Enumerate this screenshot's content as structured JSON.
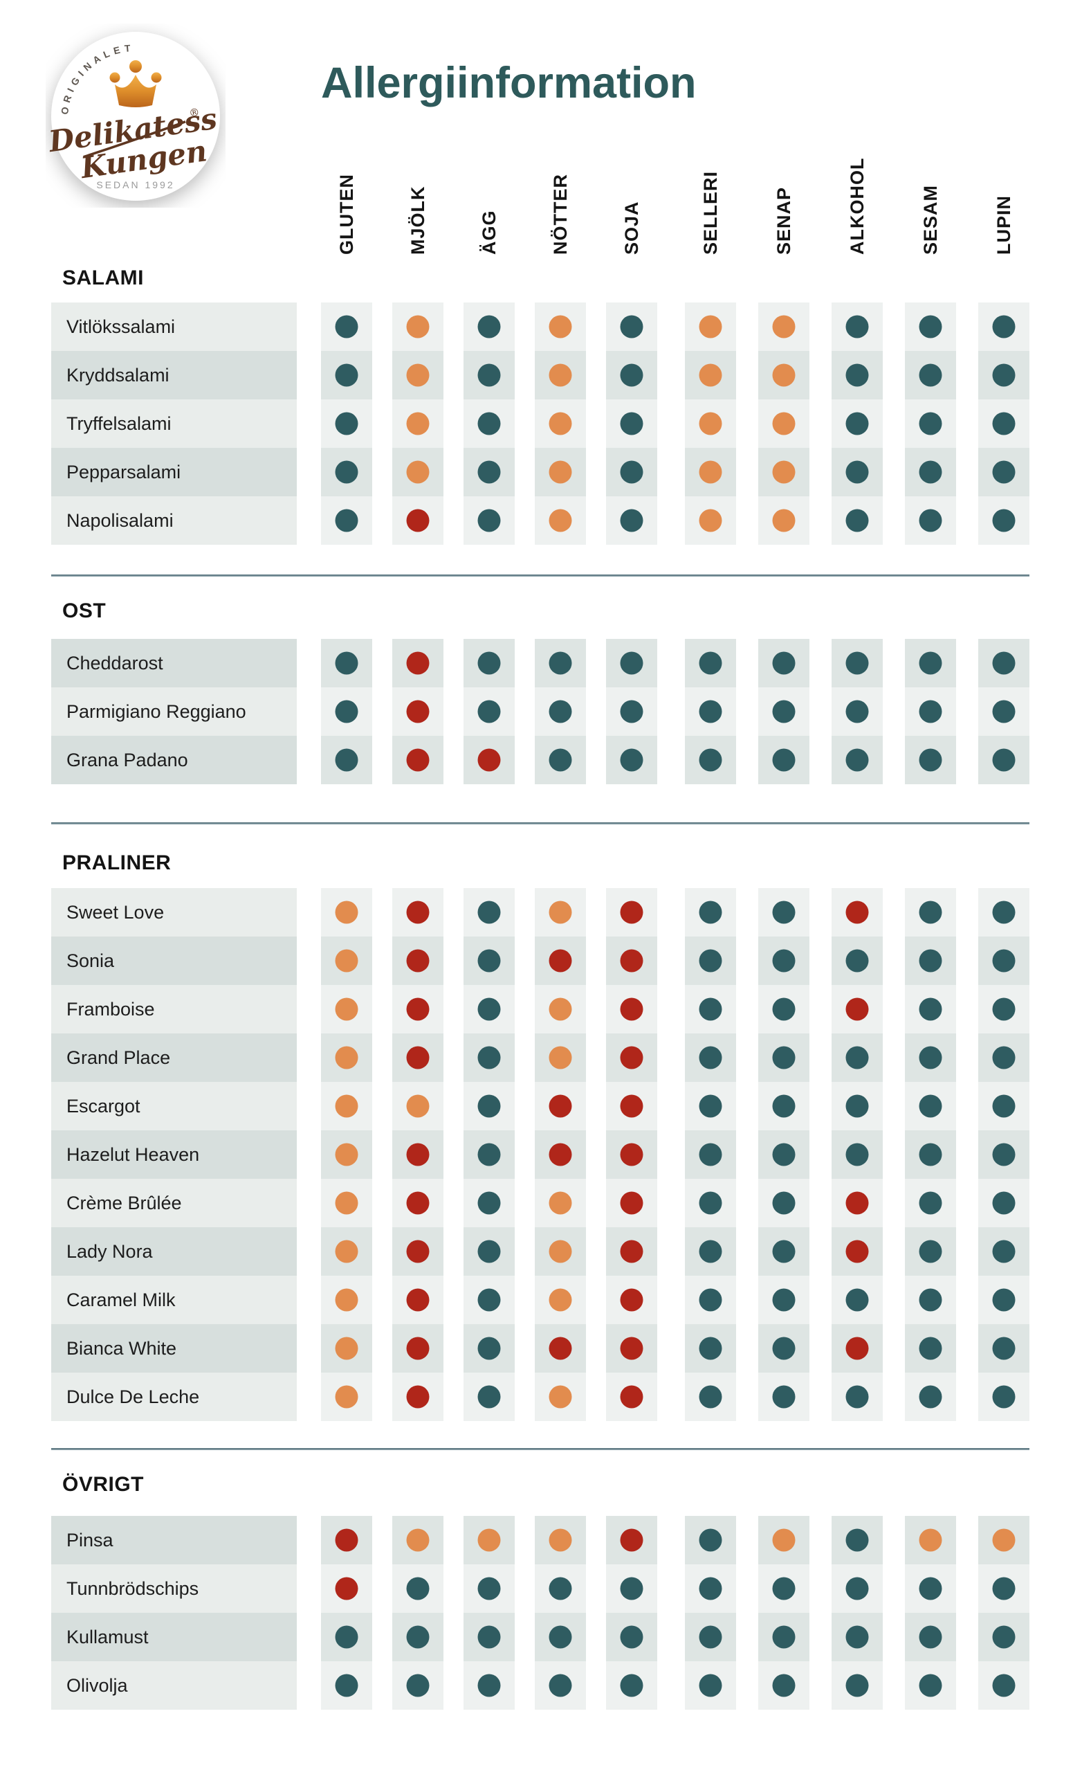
{
  "title": "Allergiinformation",
  "logo": {
    "arc_text": "ORIGINALET",
    "script_line1": "Delikatess",
    "registered": "®",
    "script_line2": "Kungen",
    "tagline": "SEDAN 1992"
  },
  "legend": {
    "free_color": "#2F5C61",
    "traces_color": "#E28C4E",
    "contains_color": "#B0261A",
    "title_color": "#2E5A5B"
  },
  "chart_data": {
    "type": "heatmap",
    "title": "Allergiinformation",
    "columns": [
      "GLUTEN",
      "MJÖLK",
      "ÄGG",
      "NÖTTER",
      "SOJA",
      "SELLERI",
      "SENAP",
      "ALKOHOL",
      "SESAM",
      "LUPIN"
    ],
    "value_legend": {
      "free": "#2F5C61",
      "traces": "#E28C4E",
      "contains": "#B0261A"
    },
    "sections": [
      {
        "heading": "SALAMI",
        "rows": [
          {
            "label": "Vitlökssalami",
            "values": [
              "free",
              "traces",
              "free",
              "traces",
              "free",
              "traces",
              "traces",
              "free",
              "free",
              "free"
            ]
          },
          {
            "label": "Kryddsalami",
            "values": [
              "free",
              "traces",
              "free",
              "traces",
              "free",
              "traces",
              "traces",
              "free",
              "free",
              "free"
            ]
          },
          {
            "label": "Tryffelsalami",
            "values": [
              "free",
              "traces",
              "free",
              "traces",
              "free",
              "traces",
              "traces",
              "free",
              "free",
              "free"
            ]
          },
          {
            "label": "Pepparsalami",
            "values": [
              "free",
              "traces",
              "free",
              "traces",
              "free",
              "traces",
              "traces",
              "free",
              "free",
              "free"
            ]
          },
          {
            "label": "Napolisalami",
            "values": [
              "free",
              "contains",
              "free",
              "traces",
              "free",
              "traces",
              "traces",
              "free",
              "free",
              "free"
            ]
          }
        ]
      },
      {
        "heading": "OST",
        "rows": [
          {
            "label": "Cheddarost",
            "values": [
              "free",
              "contains",
              "free",
              "free",
              "free",
              "free",
              "free",
              "free",
              "free",
              "free"
            ]
          },
          {
            "label": "Parmigiano Reggiano",
            "values": [
              "free",
              "contains",
              "free",
              "free",
              "free",
              "free",
              "free",
              "free",
              "free",
              "free"
            ]
          },
          {
            "label": "Grana Padano",
            "values": [
              "free",
              "contains",
              "contains",
              "free",
              "free",
              "free",
              "free",
              "free",
              "free",
              "free"
            ]
          }
        ]
      },
      {
        "heading": "PRALINER",
        "rows": [
          {
            "label": "Sweet Love",
            "values": [
              "traces",
              "contains",
              "free",
              "traces",
              "contains",
              "free",
              "free",
              "contains",
              "free",
              "free"
            ]
          },
          {
            "label": "Sonia",
            "values": [
              "traces",
              "contains",
              "free",
              "contains",
              "contains",
              "free",
              "free",
              "free",
              "free",
              "free"
            ]
          },
          {
            "label": "Framboise",
            "values": [
              "traces",
              "contains",
              "free",
              "traces",
              "contains",
              "free",
              "free",
              "contains",
              "free",
              "free"
            ]
          },
          {
            "label": "Grand Place",
            "values": [
              "traces",
              "contains",
              "free",
              "traces",
              "contains",
              "free",
              "free",
              "free",
              "free",
              "free"
            ]
          },
          {
            "label": "Escargot",
            "values": [
              "traces",
              "traces",
              "free",
              "contains",
              "contains",
              "free",
              "free",
              "free",
              "free",
              "free"
            ]
          },
          {
            "label": "Hazelut Heaven",
            "values": [
              "traces",
              "contains",
              "free",
              "contains",
              "contains",
              "free",
              "free",
              "free",
              "free",
              "free"
            ]
          },
          {
            "label": "Crème Brûlée",
            "values": [
              "traces",
              "contains",
              "free",
              "traces",
              "contains",
              "free",
              "free",
              "contains",
              "free",
              "free"
            ]
          },
          {
            "label": "Lady Nora",
            "values": [
              "traces",
              "contains",
              "free",
              "traces",
              "contains",
              "free",
              "free",
              "contains",
              "free",
              "free"
            ]
          },
          {
            "label": "Caramel Milk",
            "values": [
              "traces",
              "contains",
              "free",
              "traces",
              "contains",
              "free",
              "free",
              "free",
              "free",
              "free"
            ]
          },
          {
            "label": "Bianca White",
            "values": [
              "traces",
              "contains",
              "free",
              "contains",
              "contains",
              "free",
              "free",
              "contains",
              "free",
              "free"
            ]
          },
          {
            "label": "Dulce De Leche",
            "values": [
              "traces",
              "contains",
              "free",
              "traces",
              "contains",
              "free",
              "free",
              "free",
              "free",
              "free"
            ]
          }
        ]
      },
      {
        "heading": "ÖVRIGT",
        "rows": [
          {
            "label": "Pinsa",
            "values": [
              "contains",
              "traces",
              "traces",
              "traces",
              "contains",
              "free",
              "traces",
              "free",
              "traces",
              "traces"
            ]
          },
          {
            "label": "Tunnbrödschips",
            "values": [
              "contains",
              "free",
              "free",
              "free",
              "free",
              "free",
              "free",
              "free",
              "free",
              "free"
            ]
          },
          {
            "label": "Kullamust",
            "values": [
              "free",
              "free",
              "free",
              "free",
              "free",
              "free",
              "free",
              "free",
              "free",
              "free"
            ]
          },
          {
            "label": "Olivolja",
            "values": [
              "free",
              "free",
              "free",
              "free",
              "free",
              "free",
              "free",
              "free",
              "free",
              "free"
            ]
          }
        ]
      }
    ]
  }
}
